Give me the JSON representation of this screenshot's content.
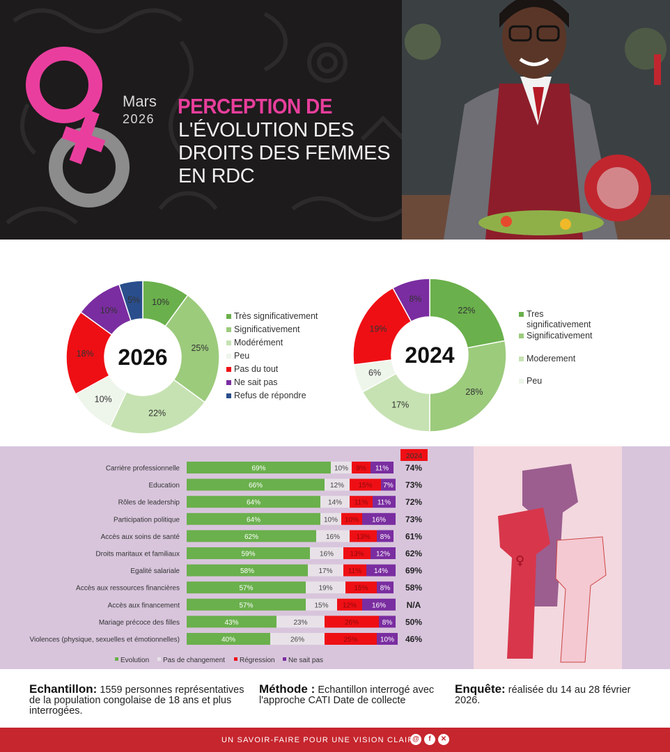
{
  "header": {
    "month": "Mars",
    "year": "2026",
    "title_accent": "PERCEPTION DE",
    "title_lines": [
      "L'ÉVOLUTION DES",
      "DROITS DES FEMMES",
      "EN RDC"
    ]
  },
  "chart_data": [
    {
      "type": "pie",
      "variant": "donut",
      "center_label": "2026",
      "slices": [
        {
          "label": "Très significativement",
          "value": 10,
          "display": "10%",
          "color": "#6ab04c"
        },
        {
          "label": "Significativement",
          "value": 25,
          "display": "25%",
          "color": "#9ccb7c"
        },
        {
          "label": "Modérément",
          "value": 22,
          "display": "22%",
          "color": "#c6e2b2"
        },
        {
          "label": "Peu",
          "value": 10,
          "display": "10%",
          "color": "#eef5ea"
        },
        {
          "label": "Pas du tout",
          "value": 18,
          "display": "18%",
          "color": "#ee0f14"
        },
        {
          "label": "Ne sait pas",
          "value": 10,
          "display": "10%",
          "color": "#7a2da0"
        },
        {
          "label": "Refus de répondre",
          "value": 5,
          "display": "5%",
          "color": "#2a4e8c"
        }
      ],
      "legend": [
        "Très significativement",
        "Significativement",
        "Modérément",
        "Peu",
        "Pas du tout",
        "Ne sait pas",
        "Refus de répondre"
      ]
    },
    {
      "type": "pie",
      "variant": "donut",
      "center_label": "2024",
      "slices": [
        {
          "label": "Tres significativement",
          "value": 22,
          "display": "22%",
          "color": "#6ab04c"
        },
        {
          "label": "Significativement",
          "value": 28,
          "display": "28%",
          "color": "#9ccb7c"
        },
        {
          "label": "Moderement",
          "value": 17,
          "display": "17%",
          "color": "#c6e2b2"
        },
        {
          "label": "Peu",
          "value": 6,
          "display": "6%",
          "color": "#eef5ea"
        },
        {
          "label": "Pas du tout",
          "value": 19,
          "display": "19%",
          "color": "#ee0f14"
        },
        {
          "label": "Ne sait pas",
          "value": 8,
          "display": "8%",
          "color": "#7a2da0"
        }
      ],
      "legend": [
        "Tres significativement",
        "Significativement",
        "Moderement",
        "Peu"
      ]
    },
    {
      "type": "bar",
      "variant": "stacked-horizontal",
      "categories": [
        "Carrière professionnelle",
        "Education",
        "Rôles de leadership",
        "Participation politique",
        "Accès aux soins de santé",
        "Droits maritaux et familiaux",
        "Egalité salariale",
        "Accès aux ressources financières",
        "Accès aux financement",
        "Mariage précoce des filles",
        "Violences (physique, sexuelles et émotionnelles)"
      ],
      "series": [
        {
          "name": "Evolution",
          "color": "#6ab04c",
          "values": [
            69,
            66,
            64,
            64,
            62,
            59,
            58,
            57,
            57,
            43,
            40
          ]
        },
        {
          "name": "Pas de changement",
          "color": "#e8e2e8",
          "values": [
            10,
            12,
            14,
            10,
            16,
            16,
            17,
            19,
            15,
            23,
            26
          ]
        },
        {
          "name": "Régression",
          "color": "#ee0f14",
          "values": [
            9,
            15,
            11,
            10,
            13,
            13,
            11,
            15,
            12,
            26,
            25
          ]
        },
        {
          "name": "Ne sait pas",
          "color": "#7a2da0",
          "values": [
            11,
            7,
            11,
            16,
            8,
            12,
            14,
            8,
            16,
            8,
            10
          ]
        }
      ],
      "comparison_header": "2024",
      "comparison_values": [
        "74%",
        "73%",
        "72%",
        "73%",
        "61%",
        "62%",
        "69%",
        "58%",
        "N/A",
        "50%",
        "46%"
      ],
      "legend": [
        "Evolution",
        "Pas de changement",
        "Régression",
        "Ne sait pas"
      ]
    }
  ],
  "info": {
    "echantillon_label": "Echantillon:",
    "echantillon_text": "1559 personnes représentatives de la population congolaise de 18 ans et plus interrogées.",
    "methode_label": "Méthode :",
    "methode_text": "Echantillon interrogé avec l'approche CATI Date de collecte",
    "enquete_label": "Enquête:",
    "enquete_text": "réalisée du 14 au 28 février 2026."
  },
  "footer": {
    "tagline": "UN SAVOIR-FAIRE POUR UNE VISION CLAIRE",
    "icons": [
      "threads-icon",
      "facebook-icon",
      "x-icon"
    ]
  }
}
